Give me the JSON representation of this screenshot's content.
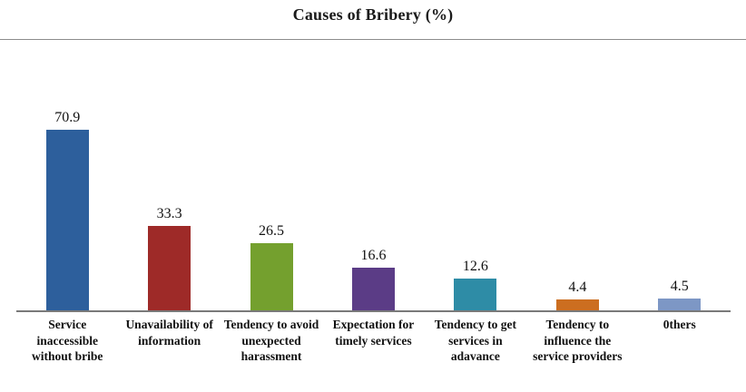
{
  "chart_data": {
    "type": "bar",
    "title": "Causes of Bribery (%)",
    "xlabel": "",
    "ylabel": "",
    "ylim": [
      0,
      80
    ],
    "grid": false,
    "legend_position": "none",
    "value_labels_shown": true,
    "categories": [
      "Service inaccessible without bribe",
      "Unavailability of information",
      "Tendency to avoid unexpected harassment",
      "Expectation for timely services",
      "Tendency to get services in adavance",
      "Tendency to influence the service providers",
      "0thers"
    ],
    "values": [
      70.9,
      33.3,
      26.5,
      16.6,
      12.6,
      4.4,
      4.5
    ],
    "value_labels": [
      "70.9",
      "33.3",
      "26.5",
      "16.6",
      "12.6",
      "4.4",
      "4.5"
    ],
    "bar_colors": [
      "#2d5f9c",
      "#9e2a28",
      "#74a02e",
      "#5b3c86",
      "#2e8ca6",
      "#cc6e20",
      "#7d97c5"
    ],
    "axis_line_color": "#7a7a7a",
    "title_rule_color": "#8c8c8c"
  }
}
